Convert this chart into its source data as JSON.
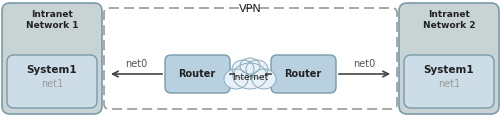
{
  "vpn_label": "VPN",
  "intranet1_label": "Intranet\nNetwork 1",
  "intranet2_label": "Intranet\nNetwork 2",
  "system1_label": "System1",
  "system1_sub": "net1",
  "system2_label": "System1",
  "system2_sub": "net1",
  "router_label": "Router",
  "internet_label": "Internet",
  "net0_left": "net0",
  "net0_right": "net0",
  "bg_system": "#ccdde8",
  "bg_router": "#b8d0e0",
  "bg_outer_left": "#c8d8d8",
  "bg_outer_right": "#c8d8d8",
  "border_color": "#7a9aaa",
  "dashed_color": "#999999",
  "text_color_dark": "#222222",
  "text_color_sub": "#999999",
  "arrow_color": "#444444",
  "cloud_fill": "#e8f0f8"
}
